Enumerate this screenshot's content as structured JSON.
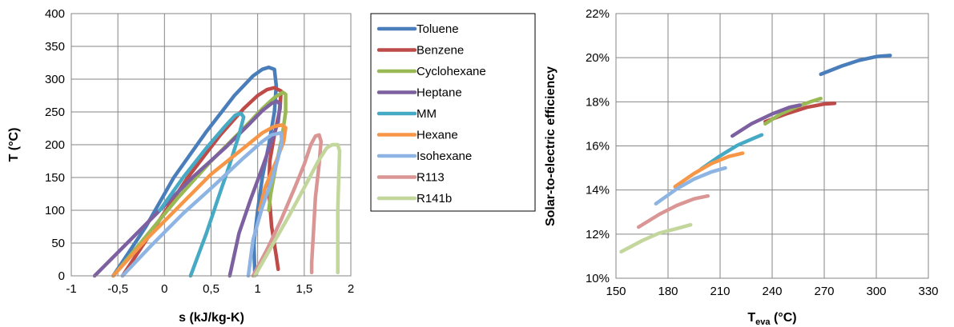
{
  "chart_data": [
    {
      "type": "line",
      "title": "",
      "xlabel": "s (kJ/kg-K)",
      "ylabel": "T (°C)",
      "xlim": [
        -1,
        2
      ],
      "ylim": [
        0,
        400
      ],
      "x_ticks": [
        "-1",
        "-0,5",
        "0",
        "0,5",
        "1",
        "1,5",
        "2"
      ],
      "y_ticks": [
        "0",
        "50",
        "100",
        "150",
        "200",
        "250",
        "300",
        "350",
        "400"
      ],
      "grid": true,
      "legend": "right",
      "series": [
        {
          "name": "Toluene",
          "color": "#4a7ebb",
          "points": [
            [
              -0.55,
              0
            ],
            [
              -0.2,
              75
            ],
            [
              0.1,
              150
            ],
            [
              0.45,
              220
            ],
            [
              0.75,
              275
            ],
            [
              0.95,
              305
            ],
            [
              1.05,
              315
            ],
            [
              1.12,
              318
            ],
            [
              1.18,
              315
            ],
            [
              1.2,
              290
            ],
            [
              1.18,
              250
            ],
            [
              1.12,
              200
            ],
            [
              1.05,
              150
            ],
            [
              1.0,
              100
            ],
            [
              0.96,
              50
            ],
            [
              0.97,
              0
            ]
          ]
        },
        {
          "name": "Benzene",
          "color": "#be4b48",
          "points": [
            [
              -0.45,
              0
            ],
            [
              -0.1,
              75
            ],
            [
              0.25,
              150
            ],
            [
              0.6,
              215
            ],
            [
              0.85,
              255
            ],
            [
              1.0,
              275
            ],
            [
              1.1,
              284
            ],
            [
              1.18,
              287
            ],
            [
              1.25,
              282
            ],
            [
              1.24,
              255
            ],
            [
              1.18,
              215
            ],
            [
              1.13,
              175
            ],
            [
              1.12,
              130
            ],
            [
              1.15,
              75
            ],
            [
              1.2,
              30
            ],
            [
              1.22,
              10
            ]
          ]
        },
        {
          "name": "Cyclohexane",
          "color": "#98b954",
          "points": [
            [
              -0.55,
              0
            ],
            [
              -0.2,
              60
            ],
            [
              0.15,
              120
            ],
            [
              0.5,
              175
            ],
            [
              0.85,
              225
            ],
            [
              1.05,
              255
            ],
            [
              1.18,
              272
            ],
            [
              1.27,
              280
            ],
            [
              1.3,
              277
            ],
            [
              1.3,
              250
            ],
            [
              1.26,
              210
            ],
            [
              1.2,
              170
            ],
            [
              1.14,
              125
            ],
            [
              1.12,
              100
            ]
          ]
        },
        {
          "name": "Heptane",
          "color": "#7d60a0",
          "points": [
            [
              -0.75,
              0
            ],
            [
              -0.4,
              50
            ],
            [
              -0.05,
              100
            ],
            [
              0.3,
              150
            ],
            [
              0.65,
              195
            ],
            [
              0.9,
              230
            ],
            [
              1.05,
              252
            ],
            [
              1.15,
              263
            ],
            [
              1.21,
              266
            ],
            [
              1.24,
              262
            ],
            [
              1.22,
              235
            ],
            [
              1.15,
              205
            ],
            [
              1.05,
              165
            ],
            [
              0.92,
              115
            ],
            [
              0.8,
              65
            ],
            [
              0.7,
              0
            ]
          ]
        },
        {
          "name": "MM",
          "color": "#46aac5",
          "points": [
            [
              -0.05,
              100
            ],
            [
              0.2,
              150
            ],
            [
              0.45,
              195
            ],
            [
              0.65,
              228
            ],
            [
              0.76,
              245
            ],
            [
              0.82,
              248
            ],
            [
              0.85,
              242
            ],
            [
              0.8,
              215
            ],
            [
              0.7,
              170
            ],
            [
              0.58,
              120
            ],
            [
              0.45,
              65
            ],
            [
              0.28,
              0
            ]
          ]
        },
        {
          "name": "Hexane",
          "color": "#f79646",
          "points": [
            [
              -0.55,
              0
            ],
            [
              -0.2,
              55
            ],
            [
              0.15,
              105
            ],
            [
              0.5,
              155
            ],
            [
              0.85,
              195
            ],
            [
              1.05,
              218
            ],
            [
              1.18,
              228
            ],
            [
              1.26,
              230
            ],
            [
              1.3,
              226
            ],
            [
              1.28,
              205
            ],
            [
              1.2,
              175
            ],
            [
              1.08,
              135
            ],
            [
              1.02,
              100
            ]
          ]
        },
        {
          "name": "Isohexane",
          "color": "#8eb4e3",
          "points": [
            [
              -0.45,
              0
            ],
            [
              -0.15,
              45
            ],
            [
              0.2,
              95
            ],
            [
              0.55,
              140
            ],
            [
              0.85,
              180
            ],
            [
              1.05,
              205
            ],
            [
              1.15,
              215
            ],
            [
              1.25,
              218
            ],
            [
              1.26,
              205
            ],
            [
              1.22,
              180
            ],
            [
              1.15,
              145
            ],
            [
              1.05,
              105
            ],
            [
              0.95,
              55
            ],
            [
              0.9,
              0
            ]
          ]
        },
        {
          "name": "R113",
          "color": "#d99694",
          "points": [
            [
              0.95,
              0
            ],
            [
              1.1,
              40
            ],
            [
              1.25,
              85
            ],
            [
              1.4,
              135
            ],
            [
              1.5,
              170
            ],
            [
              1.57,
              200
            ],
            [
              1.62,
              213
            ],
            [
              1.66,
              215
            ],
            [
              1.68,
              205
            ],
            [
              1.66,
              170
            ],
            [
              1.62,
              120
            ],
            [
              1.6,
              70
            ],
            [
              1.58,
              20
            ],
            [
              1.58,
              5
            ]
          ]
        },
        {
          "name": "R141b",
          "color": "#c3d69b",
          "points": [
            [
              0.97,
              0
            ],
            [
              1.15,
              45
            ],
            [
              1.35,
              95
            ],
            [
              1.52,
              140
            ],
            [
              1.65,
              175
            ],
            [
              1.74,
              195
            ],
            [
              1.8,
              200
            ],
            [
              1.86,
              200
            ],
            [
              1.88,
              190
            ],
            [
              1.87,
              150
            ],
            [
              1.86,
              100
            ],
            [
              1.86,
              50
            ],
            [
              1.86,
              5
            ]
          ]
        }
      ]
    },
    {
      "type": "line",
      "title": "",
      "xlabel": "T",
      "xlabel_sub": "eva",
      "xlabel_unit": " (°C)",
      "ylabel": "Solar-to-electric efficiency",
      "xlim": [
        150,
        330
      ],
      "ylim": [
        0.1,
        0.22
      ],
      "x_ticks": [
        "150",
        "180",
        "210",
        "240",
        "270",
        "300",
        "330"
      ],
      "y_ticks": [
        "10%",
        "12%",
        "14%",
        "16%",
        "18%",
        "20%",
        "22%"
      ],
      "grid": true,
      "series": [
        {
          "color": "#4a7ebb",
          "points": [
            [
              268,
              0.1925
            ],
            [
              280,
              0.1962
            ],
            [
              290,
              0.1988
            ],
            [
              300,
              0.2005
            ],
            [
              308,
              0.201
            ]
          ]
        },
        {
          "color": "#be4b48",
          "points": [
            [
              236,
              0.171
            ],
            [
              248,
              0.1745
            ],
            [
              260,
              0.1775
            ],
            [
              270,
              0.179
            ],
            [
              276,
              0.1793
            ]
          ]
        },
        {
          "color": "#98b954",
          "points": [
            [
              236,
              0.17
            ],
            [
              245,
              0.1745
            ],
            [
              255,
              0.178
            ],
            [
              262,
              0.18
            ],
            [
              268,
              0.1815
            ]
          ]
        },
        {
          "color": "#7d60a0",
          "points": [
            [
              217,
              0.1645
            ],
            [
              228,
              0.17
            ],
            [
              240,
              0.1745
            ],
            [
              250,
              0.1775
            ],
            [
              256,
              0.1785
            ]
          ]
        },
        {
          "color": "#46aac5",
          "points": [
            [
              199,
              0.1495
            ],
            [
              210,
              0.1555
            ],
            [
              220,
              0.1603
            ],
            [
              228,
              0.163
            ],
            [
              234,
              0.165
            ]
          ]
        },
        {
          "color": "#f79646",
          "points": [
            [
              184,
              0.1415
            ],
            [
              195,
              0.1475
            ],
            [
              205,
              0.152
            ],
            [
              215,
              0.1552
            ],
            [
              223,
              0.1567
            ]
          ]
        },
        {
          "color": "#8eb4e3",
          "points": [
            [
              173,
              0.1338
            ],
            [
              185,
              0.1405
            ],
            [
              195,
              0.145
            ],
            [
              205,
              0.1482
            ],
            [
              213,
              0.15
            ]
          ]
        },
        {
          "color": "#d99694",
          "points": [
            [
              163,
              0.1232
            ],
            [
              175,
              0.129
            ],
            [
              185,
              0.133
            ],
            [
              195,
              0.136
            ],
            [
              203,
              0.1373
            ]
          ]
        },
        {
          "color": "#c3d69b",
          "points": [
            [
              153,
              0.112
            ],
            [
              165,
              0.117
            ],
            [
              175,
              0.1205
            ],
            [
              185,
              0.1225
            ],
            [
              193,
              0.1242
            ]
          ]
        }
      ]
    }
  ]
}
